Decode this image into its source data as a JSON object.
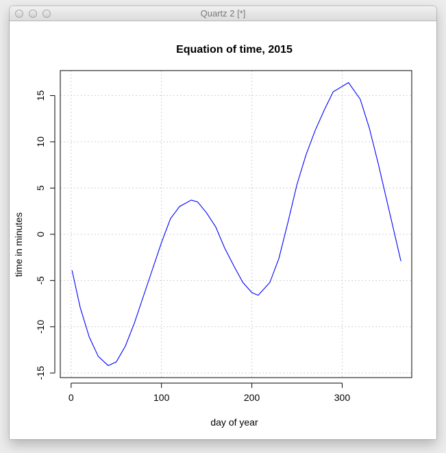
{
  "window": {
    "title": "Quartz 2 [*]"
  },
  "chart_data": {
    "type": "line",
    "title": "Equation of time, 2015",
    "xlabel": "day of year",
    "ylabel": "time in minutes",
    "xlim": [
      -12,
      377
    ],
    "ylim": [
      -15.5,
      17.7
    ],
    "x_ticks": [
      0,
      100,
      200,
      300
    ],
    "y_ticks": [
      -15,
      -10,
      -5,
      0,
      5,
      10,
      15
    ],
    "grid": true,
    "series": [
      {
        "color": "#0000ff",
        "x": [
          1,
          10,
          20,
          30,
          41,
          50,
          60,
          70,
          80,
          90,
          100,
          110,
          120,
          133,
          140,
          150,
          160,
          170,
          180,
          190,
          200,
          207,
          220,
          230,
          240,
          250,
          260,
          270,
          280,
          290,
          307,
          320,
          330,
          340,
          350,
          365
        ],
        "y": [
          -3.9,
          -7.9,
          -11.1,
          -13.2,
          -14.2,
          -13.8,
          -12.1,
          -9.6,
          -6.7,
          -3.8,
          -0.9,
          1.7,
          3.0,
          3.7,
          3.5,
          2.3,
          0.8,
          -1.5,
          -3.4,
          -5.2,
          -6.3,
          -6.6,
          -5.2,
          -2.6,
          1.3,
          5.4,
          8.6,
          11.2,
          13.4,
          15.4,
          16.4,
          14.6,
          11.5,
          7.6,
          3.4,
          -2.9
        ]
      }
    ]
  }
}
